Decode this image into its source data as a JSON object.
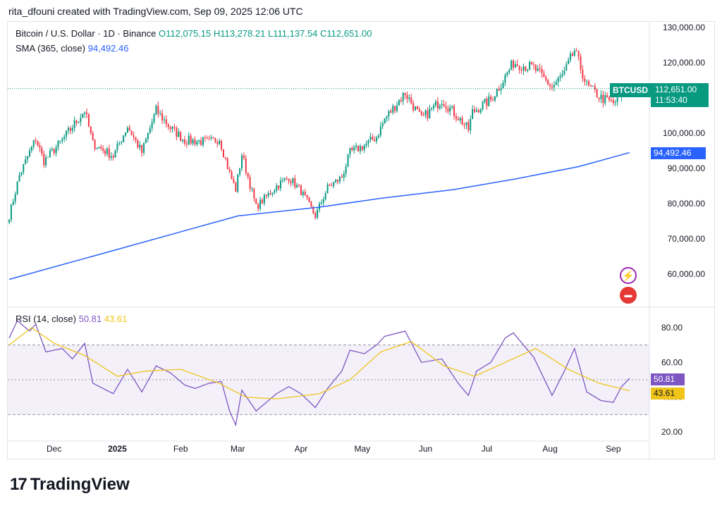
{
  "header": {
    "attribution": "rita_dfouni created with TradingView.com, Sep 09, 2025 12:06 UTC"
  },
  "legend": {
    "symbol": "Bitcoin / U.S. Dollar · 1D · Binance",
    "open": "O112,075.15",
    "high": "H113,278.21",
    "low": "L111,137.54",
    "close": "C112,651.00",
    "sma_label": "SMA (365, close)",
    "sma_value": "94,492.46",
    "rsi_label": "RSI (14, close)",
    "rsi_value": "50.81",
    "rsi_ma_value": "43.61"
  },
  "price_tag": {
    "symbol": "BTCUSD",
    "price": "112,651.00",
    "countdown": "11:53:40"
  },
  "sma_tag": "94,492.46",
  "rsi_tag": "50.81",
  "rsi_ma_tag": "43.61",
  "brand": {
    "name": "TradingView",
    "mark": "17"
  },
  "icons": [
    "flash-icon",
    "us-flag-icon"
  ],
  "colors": {
    "up": "#089981",
    "down": "#f23645",
    "sma": "#2962ff",
    "rsi": "#7e57c2",
    "rsi_ma": "#f0c419",
    "rsi_band": "#7e57c2"
  },
  "chart_data": [
    {
      "type": "candlestick",
      "title": "Bitcoin / U.S. Dollar · 1D · Binance",
      "x_labels": [
        "Dec",
        "2025",
        "Feb",
        "Mar",
        "Apr",
        "May",
        "Jun",
        "Jul",
        "Aug",
        "Sep"
      ],
      "y_ticks": [
        "130,000.00",
        "120,000.00",
        "110,000.00",
        "100,000.00",
        "90,000.00",
        "80,000.00",
        "70,000.00",
        "60,000.00"
      ],
      "y_tick_values": [
        130000,
        120000,
        110000,
        100000,
        90000,
        80000,
        70000,
        60000
      ],
      "ylim": [
        55000,
        131500
      ],
      "close_anchors": [
        {
          "x": "2024-11-09",
          "y": 76500
        },
        {
          "x": "2024-11-14",
          "y": 88000
        },
        {
          "x": "2024-11-22",
          "y": 98500
        },
        {
          "x": "2024-11-26",
          "y": 92000
        },
        {
          "x": "2024-12-05",
          "y": 98000
        },
        {
          "x": "2024-12-16",
          "y": 106500
        },
        {
          "x": "2024-12-20",
          "y": 97000
        },
        {
          "x": "2024-12-30",
          "y": 93500
        },
        {
          "x": "2025-01-06",
          "y": 102000
        },
        {
          "x": "2025-01-13",
          "y": 94500
        },
        {
          "x": "2025-01-20",
          "y": 106500
        },
        {
          "x": "2025-01-27",
          "y": 101500
        },
        {
          "x": "2025-02-03",
          "y": 98000
        },
        {
          "x": "2025-02-15",
          "y": 97500
        },
        {
          "x": "2025-02-20",
          "y": 98500
        },
        {
          "x": "2025-02-25",
          "y": 88500
        },
        {
          "x": "2025-02-28",
          "y": 84000
        },
        {
          "x": "2025-03-03",
          "y": 94000
        },
        {
          "x": "2025-03-10",
          "y": 79000
        },
        {
          "x": "2025-03-20",
          "y": 85000
        },
        {
          "x": "2025-03-26",
          "y": 87500
        },
        {
          "x": "2025-04-01",
          "y": 83500
        },
        {
          "x": "2025-04-08",
          "y": 76500
        },
        {
          "x": "2025-04-14",
          "y": 84500
        },
        {
          "x": "2025-04-21",
          "y": 87500
        },
        {
          "x": "2025-04-25",
          "y": 94500
        },
        {
          "x": "2025-05-02",
          "y": 96500
        },
        {
          "x": "2025-05-08",
          "y": 99000
        },
        {
          "x": "2025-05-12",
          "y": 104000
        },
        {
          "x": "2025-05-22",
          "y": 111500
        },
        {
          "x": "2025-05-30",
          "y": 104000
        },
        {
          "x": "2025-06-09",
          "y": 109500
        },
        {
          "x": "2025-06-17",
          "y": 104500
        },
        {
          "x": "2025-06-22",
          "y": 101000
        },
        {
          "x": "2025-06-24",
          "y": 106000
        },
        {
          "x": "2025-07-03",
          "y": 109500
        },
        {
          "x": "2025-07-10",
          "y": 116000
        },
        {
          "x": "2025-07-14",
          "y": 120000
        },
        {
          "x": "2025-07-24",
          "y": 118500
        },
        {
          "x": "2025-08-02",
          "y": 113000
        },
        {
          "x": "2025-08-08",
          "y": 117000
        },
        {
          "x": "2025-08-13",
          "y": 123500
        },
        {
          "x": "2025-08-19",
          "y": 113500
        },
        {
          "x": "2025-08-26",
          "y": 110000
        },
        {
          "x": "2025-09-01",
          "y": 108500
        },
        {
          "x": "2025-09-09",
          "y": 112651
        }
      ],
      "last_price": 112651,
      "series": [
        {
          "name": "SMA (365, close)",
          "type": "line",
          "points": [
            {
              "x": "2024-11-09",
              "y": 58500
            },
            {
              "x": "2025-01-01",
              "y": 67000
            },
            {
              "x": "2025-03-01",
              "y": 76500
            },
            {
              "x": "2025-04-10",
              "y": 79000
            },
            {
              "x": "2025-05-10",
              "y": 81500
            },
            {
              "x": "2025-06-15",
              "y": 84000
            },
            {
              "x": "2025-07-15",
              "y": 87000
            },
            {
              "x": "2025-08-15",
              "y": 90500
            },
            {
              "x": "2025-09-09",
              "y": 94492
            }
          ]
        }
      ]
    },
    {
      "type": "line",
      "title": "RSI (14, close)",
      "y_ticks": [
        "80.00",
        "60.00",
        "40.00",
        "20.00"
      ],
      "y_tick_values": [
        80,
        60,
        40,
        20
      ],
      "ylim": [
        19,
        85
      ],
      "band": [
        30,
        70
      ],
      "series": [
        {
          "name": "RSI",
          "points": [
            {
              "x": "2024-11-09",
              "y": 74
            },
            {
              "x": "2024-11-13",
              "y": 84
            },
            {
              "x": "2024-11-19",
              "y": 78
            },
            {
              "x": "2024-11-22",
              "y": 82
            },
            {
              "x": "2024-11-27",
              "y": 66
            },
            {
              "x": "2024-12-05",
              "y": 68
            },
            {
              "x": "2024-12-10",
              "y": 62
            },
            {
              "x": "2024-12-16",
              "y": 71
            },
            {
              "x": "2024-12-20",
              "y": 48
            },
            {
              "x": "2024-12-30",
              "y": 42
            },
            {
              "x": "2025-01-06",
              "y": 56
            },
            {
              "x": "2025-01-13",
              "y": 43
            },
            {
              "x": "2025-01-20",
              "y": 58
            },
            {
              "x": "2025-01-27",
              "y": 54
            },
            {
              "x": "2025-02-03",
              "y": 47
            },
            {
              "x": "2025-02-08",
              "y": 45
            },
            {
              "x": "2025-02-15",
              "y": 48
            },
            {
              "x": "2025-02-21",
              "y": 49
            },
            {
              "x": "2025-02-25",
              "y": 32
            },
            {
              "x": "2025-02-28",
              "y": 24
            },
            {
              "x": "2025-03-03",
              "y": 44
            },
            {
              "x": "2025-03-10",
              "y": 32
            },
            {
              "x": "2025-03-20",
              "y": 42
            },
            {
              "x": "2025-03-26",
              "y": 46
            },
            {
              "x": "2025-04-01",
              "y": 42
            },
            {
              "x": "2025-04-08",
              "y": 34
            },
            {
              "x": "2025-04-14",
              "y": 45
            },
            {
              "x": "2025-04-21",
              "y": 55
            },
            {
              "x": "2025-04-25",
              "y": 67
            },
            {
              "x": "2025-05-02",
              "y": 65
            },
            {
              "x": "2025-05-08",
              "y": 70
            },
            {
              "x": "2025-05-12",
              "y": 75
            },
            {
              "x": "2025-05-22",
              "y": 78
            },
            {
              "x": "2025-05-30",
              "y": 60
            },
            {
              "x": "2025-06-09",
              "y": 62
            },
            {
              "x": "2025-06-17",
              "y": 48
            },
            {
              "x": "2025-06-22",
              "y": 41
            },
            {
              "x": "2025-06-26",
              "y": 55
            },
            {
              "x": "2025-07-03",
              "y": 60
            },
            {
              "x": "2025-07-10",
              "y": 74
            },
            {
              "x": "2025-07-14",
              "y": 77
            },
            {
              "x": "2025-07-24",
              "y": 63
            },
            {
              "x": "2025-08-02",
              "y": 41
            },
            {
              "x": "2025-08-08",
              "y": 55
            },
            {
              "x": "2025-08-13",
              "y": 68
            },
            {
              "x": "2025-08-19",
              "y": 43
            },
            {
              "x": "2025-08-26",
              "y": 38
            },
            {
              "x": "2025-09-01",
              "y": 37
            },
            {
              "x": "2025-09-05",
              "y": 46
            },
            {
              "x": "2025-09-09",
              "y": 50.81
            }
          ]
        },
        {
          "name": "RSI MA",
          "points": [
            {
              "x": "2024-11-09",
              "y": 70
            },
            {
              "x": "2024-11-20",
              "y": 80
            },
            {
              "x": "2024-12-01",
              "y": 71
            },
            {
              "x": "2024-12-16",
              "y": 64
            },
            {
              "x": "2025-01-01",
              "y": 52
            },
            {
              "x": "2025-01-15",
              "y": 55
            },
            {
              "x": "2025-02-01",
              "y": 56
            },
            {
              "x": "2025-02-20",
              "y": 48
            },
            {
              "x": "2025-03-05",
              "y": 40
            },
            {
              "x": "2025-03-20",
              "y": 39
            },
            {
              "x": "2025-04-10",
              "y": 42
            },
            {
              "x": "2025-04-25",
              "y": 50
            },
            {
              "x": "2025-05-10",
              "y": 66
            },
            {
              "x": "2025-05-25",
              "y": 72
            },
            {
              "x": "2025-06-10",
              "y": 58
            },
            {
              "x": "2025-06-25",
              "y": 52
            },
            {
              "x": "2025-07-10",
              "y": 60
            },
            {
              "x": "2025-07-25",
              "y": 68
            },
            {
              "x": "2025-08-10",
              "y": 56
            },
            {
              "x": "2025-08-25",
              "y": 48
            },
            {
              "x": "2025-09-09",
              "y": 43.61
            }
          ]
        }
      ]
    }
  ]
}
